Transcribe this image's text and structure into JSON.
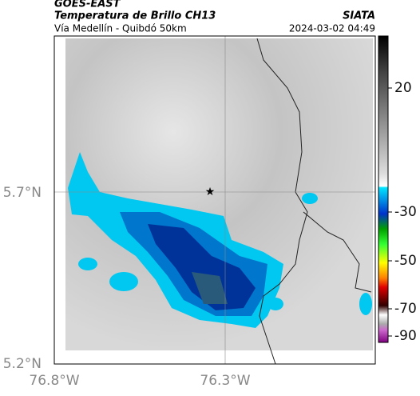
{
  "header": {
    "source": "GOES-EAST",
    "product": "Temperatura de Brillo CH13",
    "route": "Vía Medellín - Quibdó 50km",
    "org": "SIATA",
    "datetime": "2024-03-02 04:49"
  },
  "map": {
    "lat_ticks": [
      "5.7°N",
      "5.2°N"
    ],
    "lon_ticks": [
      "76.8°W",
      "76.3°W"
    ]
  },
  "colorbar": {
    "ticks": [
      "20",
      "-30",
      "-50",
      "-70",
      "-90"
    ]
  }
}
